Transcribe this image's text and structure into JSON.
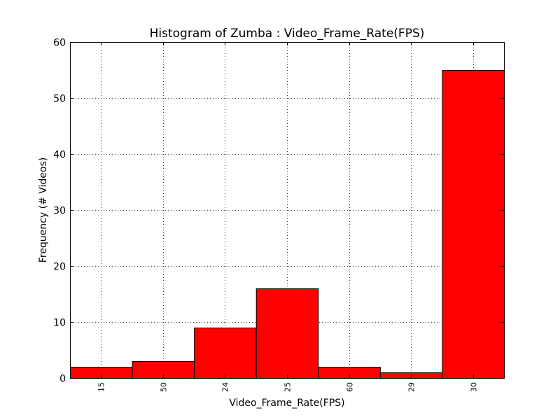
{
  "chart_data": {
    "type": "bar",
    "title": "Histogram of Zumba : Video_Frame_Rate(FPS)",
    "xlabel": "Video_Frame_Rate(FPS)",
    "ylabel": "Frequency (# Videos)",
    "categories": [
      "15",
      "50",
      "24",
      "25",
      "60",
      "29",
      "30"
    ],
    "values": [
      2,
      3,
      9,
      16,
      2,
      1,
      55
    ],
    "ylim": [
      0,
      60
    ],
    "yticks": [
      0,
      10,
      20,
      30,
      40,
      50,
      60
    ],
    "grid": true,
    "bar_color": "#ff0000",
    "edge_color": "#000000"
  }
}
